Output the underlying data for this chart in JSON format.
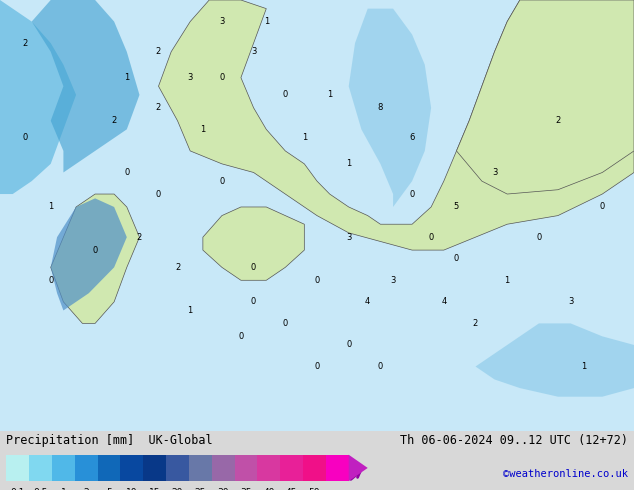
{
  "title_left": "Precipitation [mm]  UK-Global",
  "title_right": "Th 06-06-2024 09..12 UTC (12+72)",
  "credit": "©weatheronline.co.uk",
  "colorbar_values": [
    0.1,
    0.5,
    1,
    2,
    5,
    10,
    15,
    20,
    25,
    30,
    35,
    40,
    45,
    50
  ],
  "colorbar_colors": [
    "#b0f0f0",
    "#78d8f0",
    "#50b8e8",
    "#2898d8",
    "#1068b8",
    "#0848a0",
    "#083888",
    "#385898",
    "#6878a8",
    "#9868a8",
    "#c058a8",
    "#d840a0",
    "#e82898",
    "#f01088"
  ],
  "bg_color": "#d8d8d8",
  "map_bg": "#e8e8e8",
  "land_color": "#d0e8b0",
  "sea_color": "#b8e0f0",
  "bar_height": 0.04,
  "text_color": "#000000",
  "credit_color": "#0000cc",
  "font_size_title": 9,
  "font_size_tick": 8,
  "font_size_credit": 8
}
